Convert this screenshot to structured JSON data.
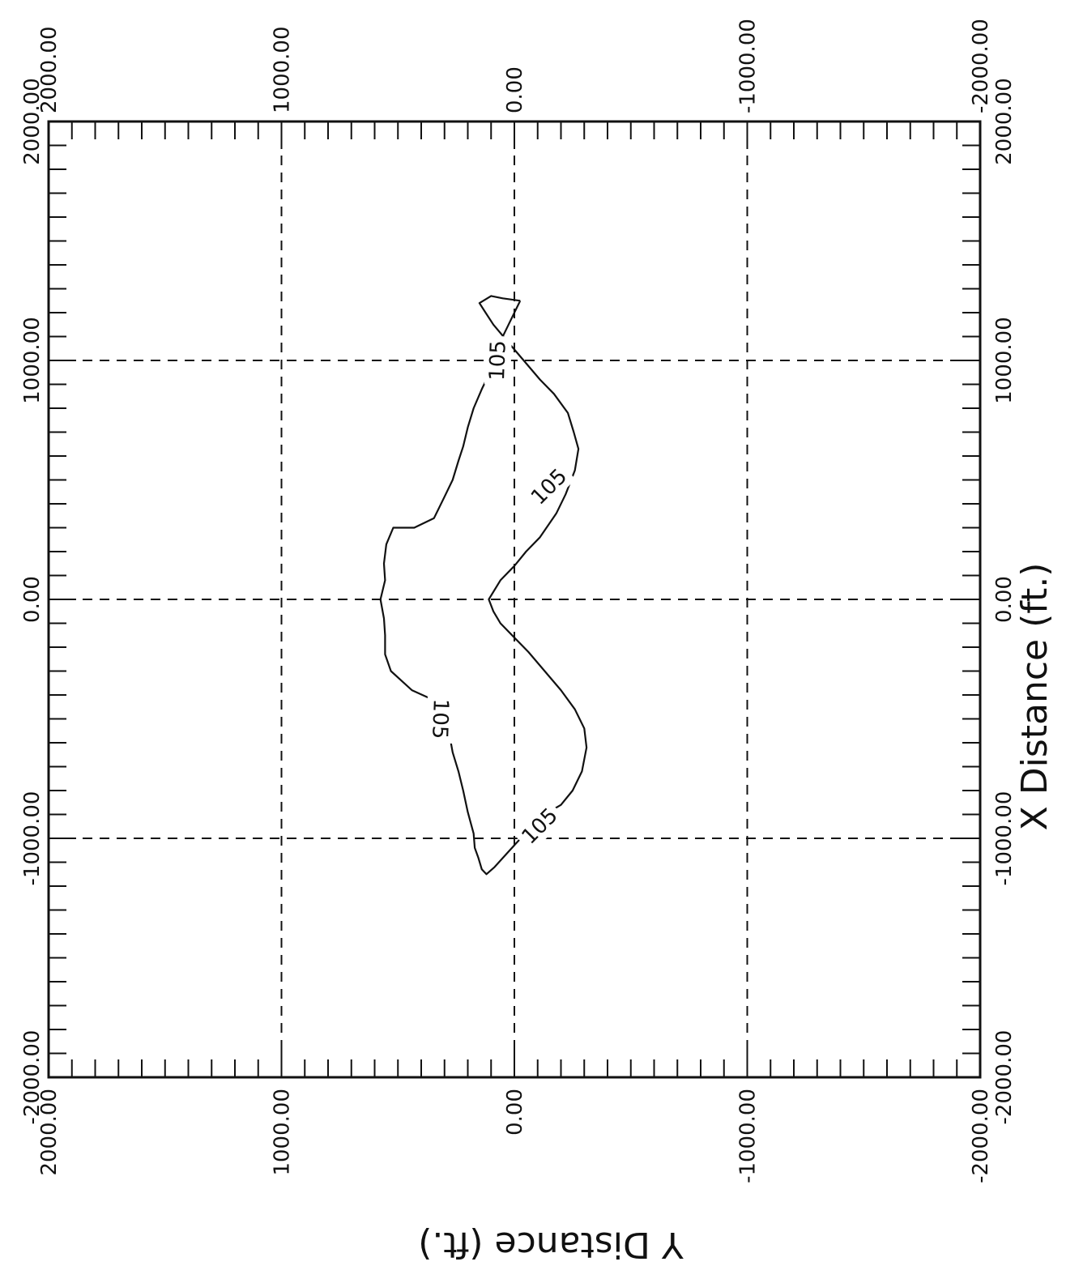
{
  "chart_data": {
    "type": "contour",
    "x_axis": {
      "label": "X Distance  (ft.)",
      "ticks": [
        2000,
        1000,
        0,
        -1000,
        -2000
      ],
      "tick_labels": [
        "2000.00",
        "1000.00",
        "0.00",
        "-1000.00",
        "-2000.00"
      ],
      "range": [
        -2000,
        2000
      ]
    },
    "y_axis": {
      "label": "Y Distance  (ft.)",
      "ticks": [
        2000,
        1000,
        0,
        -1000,
        -2000
      ],
      "tick_labels": [
        "2000.00",
        "1000.00",
        "0.00",
        "-1000.00",
        "-2000.00"
      ],
      "range": [
        -2000,
        2000
      ]
    },
    "grid": true,
    "contours": [
      {
        "level": 105,
        "label": "105",
        "points": [
          [
            1250,
            -25
          ],
          [
            1150,
            25
          ],
          [
            1050,
            75
          ],
          [
            950,
            105
          ],
          [
            880,
            140
          ],
          [
            800,
            175
          ],
          [
            720,
            200
          ],
          [
            640,
            220
          ],
          [
            580,
            240
          ],
          [
            500,
            265
          ],
          [
            430,
            300
          ],
          [
            340,
            345
          ],
          [
            300,
            430
          ],
          [
            300,
            520
          ],
          [
            230,
            550
          ],
          [
            150,
            560
          ],
          [
            80,
            555
          ],
          [
            0,
            575
          ],
          [
            -80,
            560
          ],
          [
            -150,
            555
          ],
          [
            -230,
            555
          ],
          [
            -300,
            530
          ],
          [
            -380,
            440
          ],
          [
            -420,
            350
          ],
          [
            -480,
            310
          ],
          [
            -560,
            280
          ],
          [
            -640,
            265
          ],
          [
            -720,
            240
          ],
          [
            -800,
            220
          ],
          [
            -890,
            200
          ],
          [
            -980,
            175
          ],
          [
            -1040,
            170
          ],
          [
            -1080,
            155
          ],
          [
            -1130,
            140
          ],
          [
            -1150,
            120
          ],
          [
            -1120,
            85
          ],
          [
            -1050,
            20
          ],
          [
            -970,
            -55
          ],
          [
            -900,
            -130
          ],
          [
            -860,
            -200
          ],
          [
            -800,
            -250
          ],
          [
            -720,
            -290
          ],
          [
            -620,
            -310
          ],
          [
            -540,
            -300
          ],
          [
            -460,
            -260
          ],
          [
            -380,
            -200
          ],
          [
            -300,
            -130
          ],
          [
            -220,
            -60
          ],
          [
            -160,
            0
          ],
          [
            -100,
            60
          ],
          [
            -50,
            90
          ],
          [
            0,
            110
          ],
          [
            80,
            60
          ],
          [
            140,
            0
          ],
          [
            200,
            -50
          ],
          [
            260,
            -110
          ],
          [
            360,
            -180
          ],
          [
            440,
            -220
          ],
          [
            540,
            -260
          ],
          [
            630,
            -275
          ],
          [
            700,
            -255
          ],
          [
            780,
            -230
          ],
          [
            860,
            -170
          ],
          [
            920,
            -110
          ],
          [
            1000,
            -40
          ],
          [
            1080,
            30
          ],
          [
            1150,
            90
          ],
          [
            1210,
            130
          ],
          [
            1240,
            150
          ],
          [
            1270,
            100
          ],
          [
            1260,
            50
          ],
          [
            1250,
            -25
          ]
        ]
      }
    ],
    "contour_labels": [
      {
        "text": "105",
        "x": 1000,
        "y": 70,
        "rotation": -88
      },
      {
        "text": "105",
        "x": -500,
        "y": 320,
        "rotation": 92
      },
      {
        "text": "105",
        "x": 470,
        "y": -150,
        "rotation": -45
      },
      {
        "text": "105",
        "x": -950,
        "y": -110,
        "rotation": -45
      }
    ]
  }
}
